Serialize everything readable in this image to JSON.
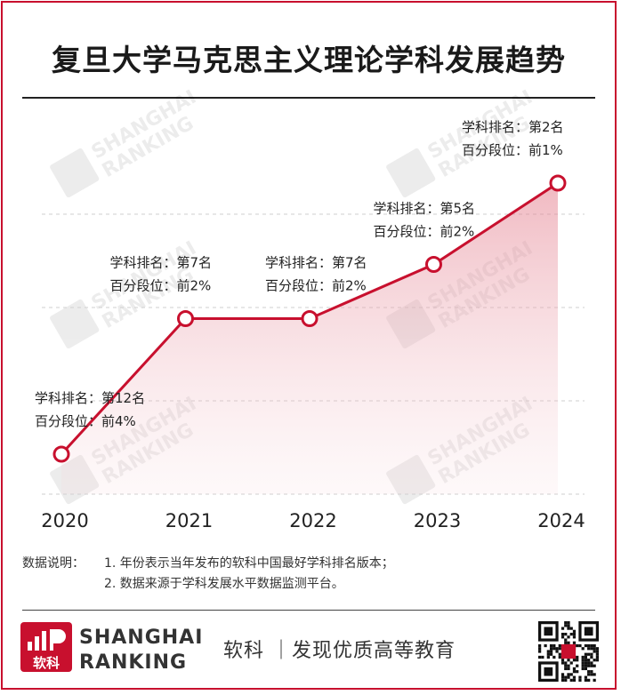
{
  "title": "复旦大学马克思主义理论学科发展趋势",
  "chart_data": {
    "type": "line",
    "x": [
      "2020",
      "2021",
      "2022",
      "2023",
      "2024"
    ],
    "series": [
      {
        "values": [
          12,
          7,
          7,
          5,
          2
        ]
      }
    ],
    "annotations": [
      {
        "rank": "学科排名：第12名",
        "percentile": "百分段位：前4%"
      },
      {
        "rank": "学科排名：第7名",
        "percentile": "百分段位：前2%"
      },
      {
        "rank": "学科排名：第7名",
        "percentile": "百分段位：前2%"
      },
      {
        "rank": "学科排名：第5名",
        "percentile": "百分段位：前2%"
      },
      {
        "rank": "学科排名：第2名",
        "percentile": "百分段位：前1%"
      }
    ],
    "y_inverted": true,
    "grid": true,
    "line_color": "#c8102e"
  },
  "notes": {
    "head": "数据说明：",
    "lines": [
      "1. 年份表示当年发布的软科中国最好学科排名版本；",
      "2. 数据来源于学科发展水平数据监测平台。"
    ]
  },
  "watermark": {
    "cn": "软科",
    "en1": "SHANGHAI",
    "en2": "RANKING"
  },
  "footer": {
    "logo_text": "软科",
    "brand_line1": "SHANGHAI",
    "brand_line2": "RANKING",
    "slogan": "软科 ｜发现优质高等教育",
    "accent": "#c8102e"
  }
}
